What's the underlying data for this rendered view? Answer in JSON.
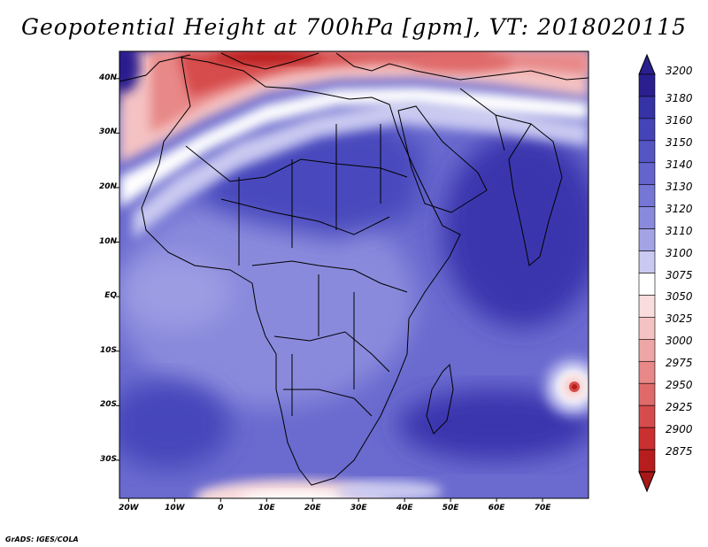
{
  "title": "Geopotential Height at 700hPa [gpm], VT: 2018020115",
  "credit": "GrADS: IGES/COLA",
  "map": {
    "lat_labels": [
      "40N",
      "30N",
      "20N",
      "10N",
      "EQ",
      "10S",
      "20S",
      "30S"
    ],
    "lon_labels": [
      "20W",
      "10W",
      "0",
      "10E",
      "20E",
      "30E",
      "40E",
      "50E",
      "60E",
      "70E"
    ],
    "lat_range": [
      -37,
      45
    ],
    "lon_range": [
      -22,
      80
    ]
  },
  "colorbar": {
    "labels": [
      "3200",
      "3180",
      "3160",
      "3150",
      "3140",
      "3130",
      "3120",
      "3110",
      "3100",
      "3075",
      "3050",
      "3025",
      "3000",
      "2975",
      "2950",
      "2925",
      "2900",
      "2875"
    ],
    "colors": [
      "#2a1f8f",
      "#3633a6",
      "#4444b8",
      "#5555c4",
      "#6464cc",
      "#7676d5",
      "#8a8add",
      "#a3a3e6",
      "#c9c9f1",
      "#ffffff",
      "#f9dcdc",
      "#f4c2c2",
      "#eea5a5",
      "#e88888",
      "#e06a6a",
      "#d64c4c",
      "#ca3030",
      "#b81d1d"
    ],
    "top_arrow_color": "#2a1f8f",
    "bottom_arrow_color": "#a81818"
  }
}
